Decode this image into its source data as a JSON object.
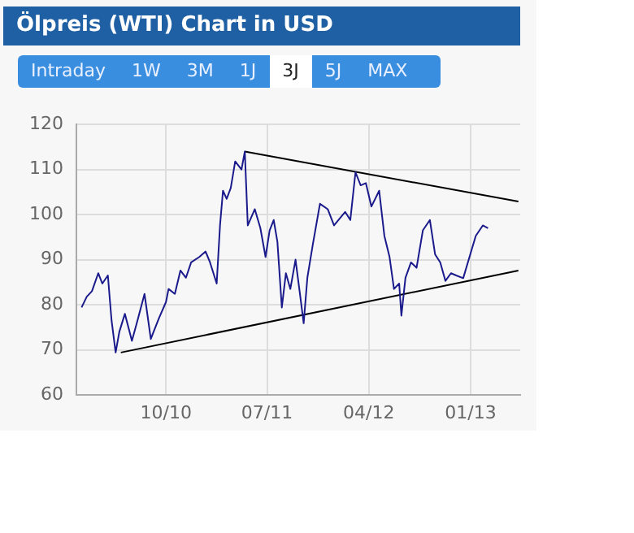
{
  "chart_data": {
    "type": "line",
    "title": "Ölpreis (WTI) Chart in USD",
    "annotations": [
      "Intraday",
      "1W",
      "3M",
      "1J",
      "3J",
      "5J",
      "MAX"
    ],
    "xlim": [
      "2010-02-01",
      "2013-05-15"
    ],
    "xticks": [
      {
        "value": "2010-10-01",
        "label": "10/10"
      },
      {
        "value": "2011-07-01",
        "label": "07/11"
      },
      {
        "value": "2012-04-01",
        "label": "04/12"
      },
      {
        "value": "2013-01-01",
        "label": "01/13"
      }
    ],
    "ylim": [
      60,
      120
    ],
    "yticks": [
      60,
      70,
      80,
      90,
      100,
      110,
      120
    ],
    "grid": true,
    "marker": "none",
    "line_style": "solid",
    "series": [
      {
        "color": "#1a1a8c",
        "x": [
          "2010-02-15",
          "2010-03-01",
          "2010-03-15",
          "2010-04-01",
          "2010-04-12",
          "2010-04-27",
          "2010-05-07",
          "2010-05-18",
          "2010-05-28",
          "2010-06-12",
          "2010-07-01",
          "2010-07-16",
          "2010-08-04",
          "2010-08-21",
          "2010-09-12",
          "2010-10-01",
          "2010-10-08",
          "2010-10-25",
          "2010-11-09",
          "2010-11-24",
          "2010-12-08",
          "2010-12-30",
          "2011-01-16",
          "2011-01-28",
          "2011-02-15",
          "2011-02-24",
          "2011-03-04",
          "2011-03-14",
          "2011-03-25",
          "2011-04-06",
          "2011-04-23",
          "2011-05-02",
          "2011-05-10",
          "2011-05-29",
          "2011-06-13",
          "2011-06-27",
          "2011-07-08",
          "2011-07-19",
          "2011-07-29",
          "2011-08-10",
          "2011-08-21",
          "2011-09-02",
          "2011-09-16",
          "2011-09-28",
          "2011-10-08",
          "2011-10-18",
          "2011-11-02",
          "2011-11-21",
          "2011-12-12",
          "2011-12-29",
          "2012-01-28",
          "2012-02-11",
          "2012-02-25",
          "2012-03-10",
          "2012-03-24",
          "2012-04-08",
          "2012-04-29",
          "2012-05-13",
          "2012-05-27",
          "2012-06-08",
          "2012-06-22",
          "2012-06-28",
          "2012-07-09",
          "2012-07-24",
          "2012-08-08",
          "2012-08-25",
          "2012-09-13",
          "2012-09-27",
          "2012-10-11",
          "2012-10-25",
          "2012-11-09",
          "2012-11-23",
          "2012-12-12",
          "2012-12-29",
          "2013-01-15",
          "2013-02-03",
          "2013-02-17"
        ],
        "values": [
          79.4,
          81.8,
          83,
          87,
          84.7,
          86.5,
          76.5,
          69.4,
          74,
          78,
          72,
          76.5,
          82.4,
          72.4,
          77,
          80.6,
          83.5,
          82.4,
          87.6,
          86,
          89.4,
          90.6,
          91.8,
          89.4,
          84.7,
          97.6,
          105.3,
          103.5,
          105.9,
          111.8,
          110,
          114,
          97.6,
          101.2,
          97,
          90.6,
          96.5,
          98.8,
          94,
          79.4,
          87,
          83.5,
          90,
          82.4,
          75.9,
          86,
          93.5,
          102.4,
          101.2,
          97.6,
          100.6,
          98.8,
          109.4,
          106.5,
          107,
          101.8,
          105.3,
          95.3,
          90.6,
          83.5,
          84.7,
          77.6,
          86,
          89.4,
          88.2,
          96.5,
          98.8,
          91.2,
          89.4,
          85.3,
          87,
          86.5,
          85.9,
          90.6,
          95.3,
          97.6,
          97
        ]
      },
      {
        "color": "#000000",
        "x": [
          "2011-05-02",
          "2013-05-10"
        ],
        "values": [
          114,
          102.9
        ]
      },
      {
        "color": "#000000",
        "x": [
          "2010-06-01",
          "2013-05-10"
        ],
        "values": [
          69.4,
          87.6
        ]
      }
    ]
  }
}
